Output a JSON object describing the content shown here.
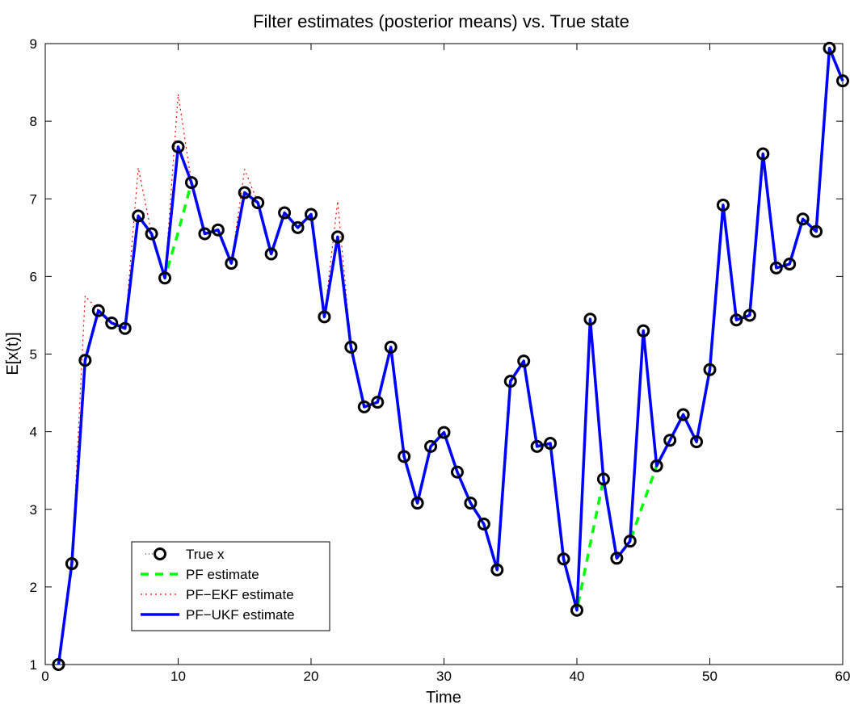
{
  "chart_data": {
    "type": "line",
    "title": "Filter estimates (posterior means) vs. True state",
    "xlabel": "Time",
    "ylabel": "E[x(t)]",
    "xlim": [
      0,
      60
    ],
    "ylim": [
      1,
      9
    ],
    "xticks": [
      0,
      10,
      20,
      30,
      40,
      50,
      60
    ],
    "yticks": [
      1,
      2,
      3,
      4,
      5,
      6,
      7,
      8,
      9
    ],
    "grid": false,
    "legend_position": "bottom-left",
    "x": [
      1,
      2,
      3,
      4,
      5,
      6,
      7,
      8,
      9,
      10,
      11,
      12,
      13,
      14,
      15,
      16,
      17,
      18,
      19,
      20,
      21,
      22,
      23,
      24,
      25,
      26,
      27,
      28,
      29,
      30,
      31,
      32,
      33,
      34,
      35,
      36,
      37,
      38,
      39,
      40,
      41,
      42,
      43,
      44,
      45,
      46,
      47,
      48,
      49,
      50,
      51,
      52,
      53,
      54,
      55,
      56,
      57,
      58,
      59,
      60
    ],
    "series": [
      {
        "name": "True x",
        "style": "markers",
        "color": "#000000",
        "values": [
          1.0,
          2.3,
          4.92,
          5.56,
          5.4,
          5.33,
          6.78,
          6.55,
          5.98,
          7.67,
          7.21,
          6.55,
          6.6,
          6.17,
          7.08,
          6.95,
          6.29,
          6.82,
          6.63,
          6.8,
          5.48,
          6.51,
          5.09,
          4.32,
          4.38,
          5.09,
          3.68,
          3.08,
          3.81,
          3.99,
          3.48,
          3.08,
          2.81,
          2.22,
          4.65,
          4.91,
          3.81,
          3.85,
          2.36,
          1.7,
          5.45,
          3.39,
          2.37,
          2.59,
          5.3,
          3.56,
          3.89,
          4.22,
          3.87,
          4.8,
          6.92,
          5.44,
          5.5,
          7.58,
          6.11,
          6.16,
          6.74,
          6.58,
          8.94,
          8.52
        ]
      },
      {
        "name": "PF estimate",
        "style": "dashed",
        "color": "#00ff00",
        "values": [
          1.0,
          2.3,
          4.92,
          5.56,
          5.4,
          5.33,
          6.78,
          6.55,
          5.98,
          6.57,
          7.21,
          6.55,
          6.6,
          6.17,
          7.08,
          6.95,
          6.29,
          6.82,
          6.63,
          6.8,
          5.48,
          6.51,
          5.09,
          4.32,
          4.38,
          5.09,
          3.68,
          3.08,
          3.81,
          3.99,
          3.48,
          3.08,
          2.81,
          2.22,
          4.65,
          4.91,
          3.81,
          3.85,
          2.36,
          1.7,
          2.55,
          3.39,
          2.37,
          2.59,
          3.08,
          3.56,
          3.89,
          4.22,
          3.87,
          4.8,
          6.92,
          5.44,
          5.5,
          7.58,
          6.11,
          6.16,
          6.74,
          6.58,
          8.94,
          8.52
        ]
      },
      {
        "name": "PF−EKF estimate",
        "style": "dotted",
        "color": "#ff0000",
        "values": [
          1.0,
          2.3,
          5.75,
          5.56,
          5.4,
          5.33,
          7.4,
          6.55,
          5.98,
          8.35,
          7.21,
          6.55,
          6.6,
          6.17,
          7.38,
          6.95,
          6.29,
          6.82,
          6.63,
          6.8,
          5.48,
          6.97,
          5.09,
          4.32,
          4.38,
          5.09,
          3.68,
          3.08,
          3.81,
          3.99,
          3.48,
          3.08,
          2.81,
          2.22,
          4.65,
          4.91,
          3.81,
          3.85,
          2.36,
          1.7,
          5.45,
          3.39,
          2.37,
          2.59,
          5.3,
          3.56,
          3.89,
          4.22,
          3.87,
          4.8,
          6.92,
          5.44,
          5.5,
          7.58,
          6.11,
          6.16,
          6.74,
          6.58,
          8.94,
          8.52
        ]
      },
      {
        "name": "PF−UKF estimate",
        "style": "solid",
        "color": "#0000ff",
        "values": [
          1.0,
          2.3,
          4.92,
          5.56,
          5.4,
          5.33,
          6.78,
          6.55,
          5.98,
          7.67,
          7.21,
          6.55,
          6.6,
          6.17,
          7.08,
          6.95,
          6.29,
          6.82,
          6.63,
          6.8,
          5.48,
          6.51,
          5.09,
          4.32,
          4.38,
          5.09,
          3.68,
          3.08,
          3.81,
          3.99,
          3.48,
          3.08,
          2.81,
          2.22,
          4.65,
          4.91,
          3.81,
          3.85,
          2.36,
          1.7,
          5.45,
          3.39,
          2.37,
          2.59,
          5.3,
          3.56,
          3.89,
          4.22,
          3.87,
          4.8,
          6.92,
          5.44,
          5.5,
          7.58,
          6.11,
          6.16,
          6.74,
          6.58,
          8.94,
          8.52
        ]
      }
    ]
  }
}
